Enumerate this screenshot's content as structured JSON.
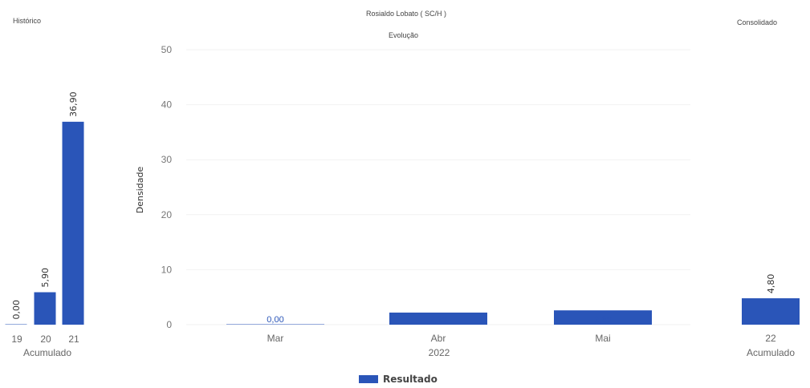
{
  "header": {
    "left_title": "Histórico",
    "center_title": "Rosialdo Lobato ( SC/H )",
    "center_subtitle": "Evolução",
    "right_title": "Consolidado"
  },
  "colors": {
    "bar": "#2a55b8"
  },
  "legend": {
    "label": "Resultado"
  },
  "chart_data": [
    {
      "type": "bar",
      "panel": "Histórico",
      "categories": [
        "19",
        "20",
        "21"
      ],
      "values": [
        0.0,
        5.9,
        36.9
      ],
      "value_labels": [
        "0,00",
        "5,90",
        "36,90"
      ],
      "xlabel": "Acumulado",
      "ylim": [
        0,
        50
      ]
    },
    {
      "type": "bar",
      "panel": "Evolução",
      "categories": [
        "Mar",
        "Abr",
        "Mai"
      ],
      "values": [
        0.0,
        2.2,
        2.6
      ],
      "value_labels": [
        "0,00",
        "2,20",
        "2,60"
      ],
      "xlabel": "2022",
      "ylabel": "Densidade",
      "yticks": [
        "0",
        "10",
        "20",
        "30",
        "40",
        "50"
      ],
      "ylim": [
        0,
        50
      ],
      "series": [
        {
          "name": "Resultado",
          "values": [
            0.0,
            2.2,
            2.6
          ]
        }
      ]
    },
    {
      "type": "bar",
      "panel": "Consolidado",
      "categories": [
        "22"
      ],
      "values": [
        4.8
      ],
      "value_labels": [
        "4,80"
      ],
      "xlabel": "Acumulado",
      "ylim": [
        0,
        50
      ]
    }
  ]
}
